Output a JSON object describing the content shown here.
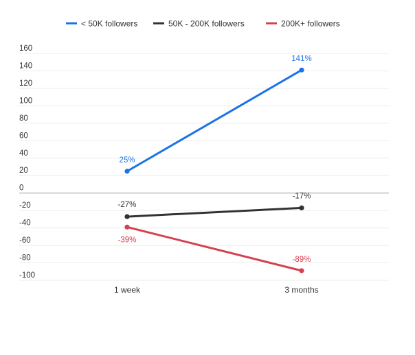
{
  "chart_data": {
    "type": "line",
    "title": "",
    "xlabel": "",
    "ylabel": "",
    "categories": [
      "1 week",
      "3 months"
    ],
    "ylim": [
      -100,
      160
    ],
    "yticks": [
      160,
      140,
      120,
      100,
      80,
      60,
      40,
      20,
      0,
      -20,
      -40,
      -60,
      -80,
      -100
    ],
    "ytick_labels": [
      "160",
      "140",
      "120",
      "100",
      "80",
      "60",
      "40",
      "20",
      "0",
      "-20",
      "-40",
      "-60",
      "-80",
      "-100"
    ],
    "grid": true,
    "legend_position": "top-center",
    "series": [
      {
        "name": "< 50K followers",
        "color": "#1a73e8",
        "values": [
          25,
          141
        ],
        "labels": [
          "25%",
          "141%"
        ]
      },
      {
        "name": "50K - 200K followers",
        "color": "#333333",
        "values": [
          -27,
          -17
        ],
        "labels": [
          "-27%",
          "-17%"
        ]
      },
      {
        "name": "200K+ followers",
        "color": "#d6404e",
        "values": [
          -39,
          -89
        ],
        "labels": [
          "-39%",
          "-89%"
        ]
      }
    ]
  }
}
